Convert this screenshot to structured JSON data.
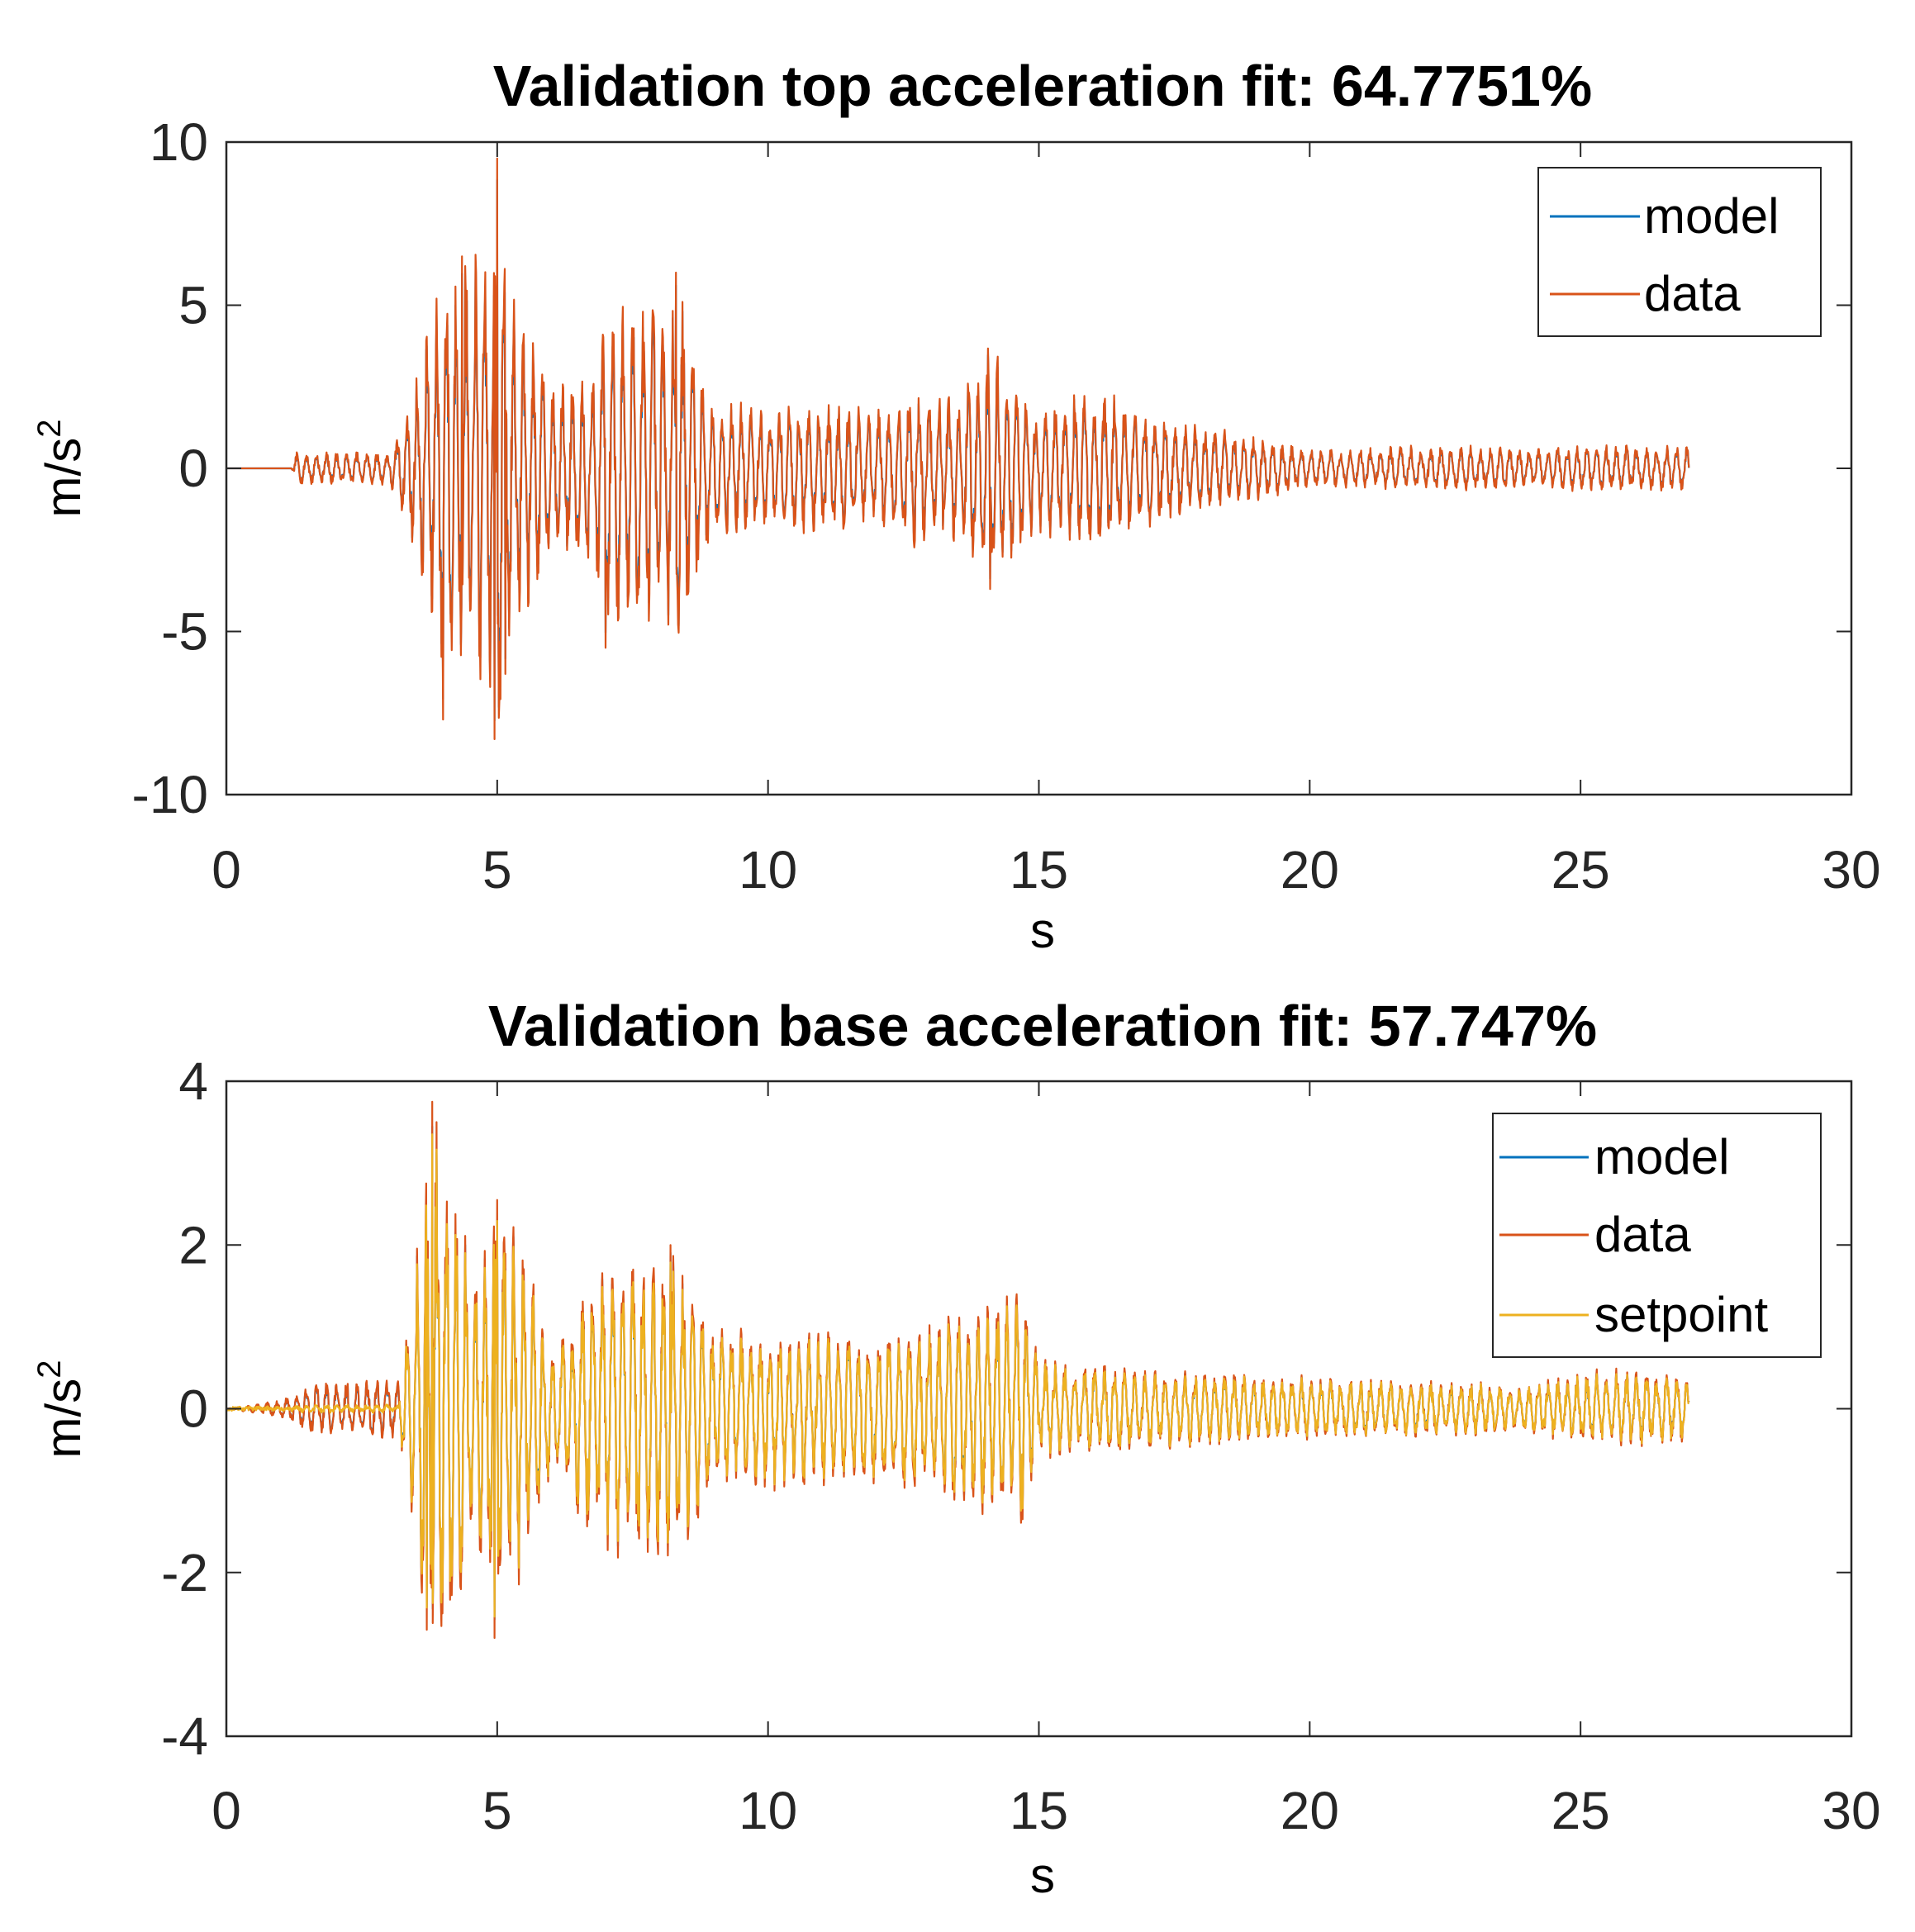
{
  "chart_data": [
    {
      "type": "line",
      "title": "Validation top acceleration fit: 64.7751%",
      "xlabel": "s",
      "ylabel": "m/s",
      "ylabel_sup": "2",
      "xlim": [
        0,
        30
      ],
      "ylim": [
        -10,
        10
      ],
      "xticks": [
        0,
        5,
        10,
        15,
        20,
        25,
        30
      ],
      "xtick_labels": [
        "0",
        "5",
        "10",
        "15",
        "20",
        "25",
        "30"
      ],
      "yticks": [
        -10,
        -5,
        0,
        5,
        10
      ],
      "ytick_labels": [
        "-10",
        "-5",
        "0",
        "5",
        "10"
      ],
      "legend_position": "top-right",
      "series": [
        {
          "name": "model",
          "color": "#0072BD"
        },
        {
          "name": "data",
          "color": "#D95319"
        }
      ],
      "envelope": {
        "t": [
          0,
          1.2,
          1.3,
          3.0,
          3.3,
          3.6,
          4.0,
          4.4,
          4.9,
          5.0,
          5.2,
          6.0,
          6.8,
          7.0,
          7.5,
          8.0,
          8.3,
          9.0,
          10.0,
          11.0,
          12.0,
          12.8,
          13.5,
          14.0,
          14.2,
          15.0,
          16.0,
          17.0,
          18.0,
          19.0,
          20.0,
          21.0,
          22.0,
          23.0,
          24.0,
          25.0,
          26.0,
          27.0
        ],
        "amp": [
          0,
          0,
          0.5,
          0.5,
          1.5,
          3.5,
          6.5,
          6.5,
          7.0,
          9.5,
          6.0,
          2.5,
          3.0,
          5.0,
          5.0,
          5.0,
          6.0,
          2.0,
          2.0,
          2.0,
          1.8,
          2.5,
          2.3,
          3.8,
          3.5,
          2.0,
          2.5,
          1.8,
          1.3,
          1.0,
          0.6,
          0.6,
          0.7,
          0.7,
          0.6,
          0.7,
          0.7,
          0.7
        ]
      },
      "peaks": [
        [
          4.0,
          -7.7
        ],
        [
          4.35,
          6.5
        ],
        [
          4.95,
          -8.3
        ],
        [
          5.0,
          9.5
        ],
        [
          5.15,
          -6.3
        ],
        [
          8.3,
          6.0
        ],
        [
          7.0,
          -5.5
        ],
        [
          14.1,
          3.8
        ],
        [
          14.1,
          -3.7
        ]
      ]
    },
    {
      "type": "line",
      "title": "Validation base acceleration fit: 57.747%",
      "xlabel": "s",
      "ylabel": "m/s",
      "ylabel_sup": "2",
      "xlim": [
        0,
        30
      ],
      "ylim": [
        -4,
        4
      ],
      "xticks": [
        0,
        5,
        10,
        15,
        20,
        25,
        30
      ],
      "xtick_labels": [
        "0",
        "5",
        "10",
        "15",
        "20",
        "25",
        "30"
      ],
      "yticks": [
        -4,
        -2,
        0,
        2,
        4
      ],
      "ytick_labels": [
        "-4",
        "-2",
        "0",
        "2",
        "4"
      ],
      "legend_position": "top-right",
      "series": [
        {
          "name": "model",
          "color": "#0072BD"
        },
        {
          "name": "data",
          "color": "#D95319"
        },
        {
          "name": "setpoint",
          "color": "#EDB120"
        }
      ],
      "envelope": {
        "t": [
          0,
          0.5,
          1.0,
          1.5,
          3.0,
          3.2,
          3.5,
          3.8,
          4.5,
          5.0,
          5.3,
          6.0,
          7.0,
          8.2,
          9.0,
          10.0,
          12.0,
          14.0,
          14.7,
          15.0,
          17.0,
          19.0,
          20.0,
          22.0,
          24.0,
          25.5,
          27.0
        ],
        "amp": [
          0,
          0.05,
          0.1,
          0.3,
          0.4,
          0.4,
          1.8,
          3.7,
          2.0,
          2.6,
          2.4,
          0.8,
          1.8,
          2.0,
          1.0,
          1.0,
          0.9,
          1.3,
          1.4,
          0.6,
          0.5,
          0.4,
          0.4,
          0.35,
          0.3,
          0.5,
          0.4
        ]
      },
      "peaks": [
        [
          3.8,
          3.75
        ],
        [
          3.7,
          -2.7
        ],
        [
          5.0,
          2.55
        ],
        [
          4.95,
          -2.8
        ],
        [
          8.2,
          2.0
        ],
        [
          14.7,
          1.4
        ],
        [
          14.7,
          -1.35
        ]
      ]
    }
  ]
}
